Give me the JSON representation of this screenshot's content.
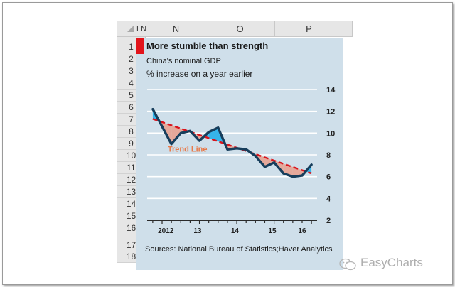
{
  "spreadsheet": {
    "corner_label": "LN",
    "columns": [
      "N",
      "O",
      "P"
    ],
    "rows": [
      "1",
      "2",
      "3",
      "4",
      "5",
      "6",
      "7",
      "8",
      "9",
      "10",
      "11",
      "12",
      "13",
      "14",
      "15",
      "16",
      "17",
      "18"
    ]
  },
  "chart": {
    "title": "More stumble than strength",
    "subtitle": "China's nominal GDP",
    "unit_label": "% increase on a year earlier",
    "trend_label": "Trend Line",
    "source": "Sources: National Bureau of Statistics;Haver Analytics",
    "y_ticks": [
      "14",
      "12",
      "10",
      "8",
      "6",
      "4",
      "2"
    ],
    "x_ticks": [
      "2012",
      "13",
      "14",
      "15",
      "16"
    ]
  },
  "chart_data": {
    "type": "line",
    "x": [
      2011.75,
      2012.0,
      2012.25,
      2012.5,
      2012.75,
      2013.0,
      2013.25,
      2013.5,
      2013.75,
      2014.0,
      2014.25,
      2014.5,
      2014.75,
      2015.0,
      2015.25,
      2015.5,
      2015.75,
      2016.0
    ],
    "y": [
      12.2,
      10.6,
      9.0,
      10.0,
      10.2,
      9.3,
      10.1,
      10.5,
      8.5,
      8.6,
      8.5,
      7.9,
      6.9,
      7.3,
      6.3,
      6.0,
      6.1,
      7.1
    ],
    "trend": {
      "start": [
        2011.75,
        11.3
      ],
      "end": [
        2016.0,
        6.3
      ]
    },
    "ylim": [
      2,
      14
    ],
    "y_axis_position": "right",
    "grid": true,
    "colors": {
      "line": "#173e5c",
      "trend": "#d9141c",
      "above": "#36b4ea",
      "below": "#e5a89a",
      "panel": "#cfdfea",
      "label": "#e87a4a"
    }
  },
  "watermark": {
    "text": "EasyCharts"
  }
}
